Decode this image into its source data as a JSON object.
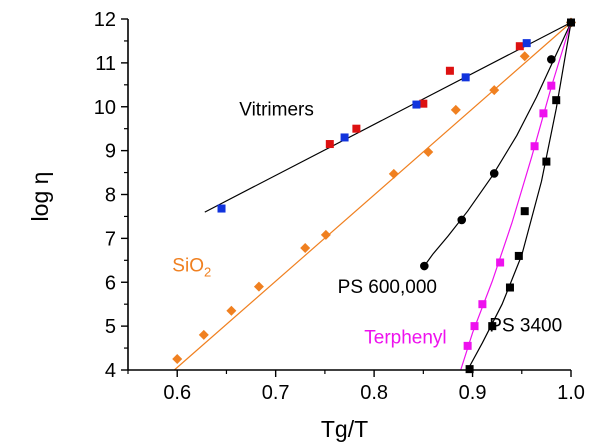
{
  "chart_data": {
    "type": "scatter",
    "title": "",
    "xlabel": "Tg/T",
    "ylabel": "log η",
    "xlim": [
      0.55,
      1.0
    ],
    "ylim": [
      4,
      12
    ],
    "xticks": [
      0.6,
      0.7,
      0.8,
      0.9,
      1.0
    ],
    "xtick_labels": [
      "0.6",
      "0.7",
      "0.8",
      "0.9",
      "1.0"
    ],
    "yticks": [
      4,
      5,
      6,
      7,
      8,
      9,
      10,
      11,
      12
    ],
    "ytick_labels": [
      "4",
      "5",
      "6",
      "7",
      "8",
      "9",
      "10",
      "11",
      "12"
    ],
    "grid": false,
    "legend": "none",
    "series": [
      {
        "marker": "square",
        "color": "#dd1111",
        "points": [
          [
            0.755,
            9.15
          ],
          [
            0.782,
            9.5
          ],
          [
            0.85,
            10.07
          ],
          [
            0.877,
            10.82
          ],
          [
            0.948,
            11.38
          ]
        ]
      },
      {
        "marker": "square",
        "color": "#1133dd",
        "points": [
          [
            0.645,
            7.68
          ],
          [
            0.77,
            9.3
          ],
          [
            0.843,
            10.05
          ],
          [
            0.893,
            10.67
          ],
          [
            0.955,
            11.45
          ],
          [
            1.0,
            11.92
          ]
        ]
      },
      {
        "marker": "diamond",
        "color": "#f08020",
        "points": [
          [
            0.6,
            4.25
          ],
          [
            0.627,
            4.8
          ],
          [
            0.655,
            5.35
          ],
          [
            0.683,
            5.9
          ],
          [
            0.73,
            6.78
          ],
          [
            0.751,
            7.08
          ],
          [
            0.82,
            8.47
          ],
          [
            0.855,
            8.97
          ],
          [
            0.883,
            9.93
          ],
          [
            0.922,
            10.38
          ],
          [
            0.953,
            11.15
          ],
          [
            1.0,
            11.92
          ]
        ]
      },
      {
        "marker": "circle",
        "color": "#000000",
        "points": [
          [
            0.851,
            6.37
          ],
          [
            0.889,
            7.42
          ],
          [
            0.922,
            8.48
          ],
          [
            0.98,
            11.08
          ],
          [
            1.0,
            11.92
          ]
        ]
      },
      {
        "marker": "square",
        "color": "#ee11ee",
        "points": [
          [
            0.895,
            4.55
          ],
          [
            0.902,
            5.0
          ],
          [
            0.91,
            5.5
          ],
          [
            0.928,
            6.45
          ],
          [
            0.963,
            9.1
          ],
          [
            0.972,
            9.85
          ],
          [
            0.98,
            10.48
          ],
          [
            1.0,
            11.92
          ]
        ]
      },
      {
        "marker": "square",
        "color": "#000000",
        "points": [
          [
            0.897,
            4.02
          ],
          [
            0.92,
            5.0
          ],
          [
            0.938,
            5.88
          ],
          [
            0.947,
            6.6
          ],
          [
            0.953,
            7.62
          ],
          [
            0.975,
            8.75
          ],
          [
            0.985,
            10.15
          ],
          [
            1.0,
            11.92
          ]
        ]
      }
    ],
    "fit_lines": [
      {
        "color": "#000000",
        "points": [
          [
            0.628,
            7.6
          ],
          [
            1.0,
            11.92
          ]
        ]
      },
      {
        "color": "#f08020",
        "points": [
          [
            0.597,
            4.0
          ],
          [
            1.0,
            11.92
          ]
        ]
      },
      {
        "color": "#000000",
        "points": [
          [
            0.851,
            6.37
          ],
          [
            0.86,
            6.65
          ],
          [
            0.875,
            7.05
          ],
          [
            0.895,
            7.62
          ],
          [
            0.92,
            8.42
          ],
          [
            0.945,
            9.35
          ],
          [
            0.965,
            10.22
          ],
          [
            0.983,
            11.1
          ],
          [
            1.0,
            11.92
          ]
        ]
      },
      {
        "color": "#ee11ee",
        "points": [
          [
            0.888,
            4.0
          ],
          [
            0.9,
            4.85
          ],
          [
            0.92,
            6.02
          ],
          [
            0.94,
            7.35
          ],
          [
            0.96,
            8.85
          ],
          [
            0.98,
            10.45
          ],
          [
            1.0,
            11.92
          ]
        ]
      },
      {
        "color": "#000000",
        "points": [
          [
            0.895,
            4.0
          ],
          [
            0.91,
            4.62
          ],
          [
            0.93,
            5.5
          ],
          [
            0.95,
            6.62
          ],
          [
            0.97,
            8.3
          ],
          [
            0.985,
            9.95
          ],
          [
            1.0,
            11.92
          ]
        ]
      }
    ],
    "annotations": [
      {
        "text": "Vitrimers",
        "color": "#000000",
        "x": 0.663,
        "y": 9.8
      },
      {
        "text": "SiO",
        "sub": "2",
        "color": "#f08020",
        "x": 0.595,
        "y": 6.25
      },
      {
        "text": "PS 600,000",
        "color": "#000000",
        "x": 0.763,
        "y": 5.75
      },
      {
        "text": "Terphenyl",
        "color": "#ee11ee",
        "x": 0.79,
        "y": 4.6
      },
      {
        "text": "PS 3400",
        "color": "#000000",
        "x": 0.917,
        "y": 4.88
      }
    ]
  }
}
